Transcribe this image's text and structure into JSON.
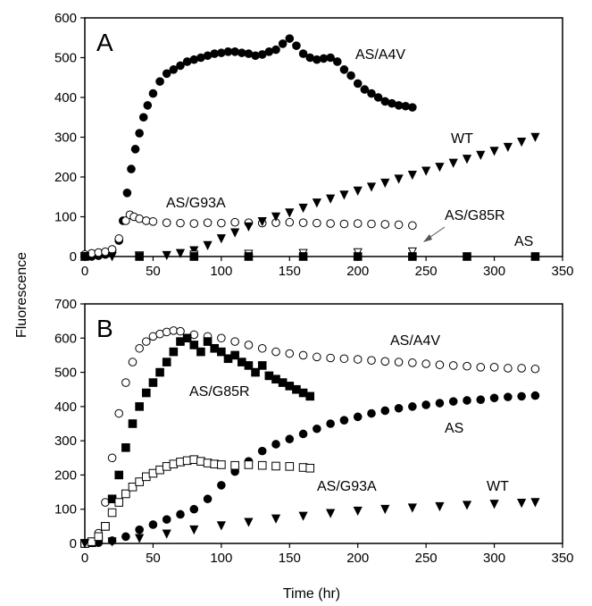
{
  "figure": {
    "ylabel": "Fluorescence",
    "xlabel": "Time (hr)"
  },
  "chart_data": [
    {
      "panel": "A",
      "type": "scatter",
      "xlim": [
        0,
        350
      ],
      "ylim": [
        0,
        600
      ],
      "xticks": [
        0,
        50,
        100,
        150,
        200,
        250,
        300,
        350
      ],
      "yticks": [
        0,
        100,
        200,
        300,
        400,
        500,
        600
      ],
      "grid": false,
      "series": [
        {
          "name": "AS/A4V",
          "marker": "filled-circle",
          "x": [
            0,
            5,
            10,
            15,
            20,
            25,
            28,
            31,
            34,
            37,
            40,
            43,
            46,
            50,
            55,
            60,
            65,
            70,
            75,
            80,
            85,
            90,
            95,
            100,
            105,
            110,
            115,
            120,
            125,
            130,
            135,
            140,
            145,
            150,
            155,
            160,
            165,
            170,
            175,
            180,
            185,
            190,
            195,
            200,
            205,
            210,
            215,
            220,
            225,
            230,
            235,
            240
          ],
          "y": [
            0,
            0,
            2,
            5,
            15,
            40,
            90,
            160,
            220,
            270,
            310,
            350,
            380,
            410,
            440,
            460,
            470,
            480,
            490,
            495,
            500,
            505,
            510,
            512,
            515,
            515,
            512,
            510,
            505,
            508,
            515,
            520,
            535,
            548,
            530,
            510,
            500,
            495,
            498,
            500,
            490,
            470,
            455,
            435,
            420,
            410,
            400,
            390,
            385,
            380,
            378,
            375
          ]
        },
        {
          "name": "AS/G93A",
          "marker": "open-circle",
          "x": [
            0,
            5,
            10,
            15,
            20,
            25,
            30,
            33,
            36,
            40,
            45,
            50,
            60,
            70,
            80,
            90,
            100,
            110,
            120,
            130,
            140,
            150,
            160,
            170,
            180,
            190,
            200,
            210,
            220,
            230,
            240
          ],
          "y": [
            5,
            8,
            10,
            12,
            18,
            45,
            90,
            105,
            100,
            95,
            90,
            88,
            85,
            84,
            83,
            85,
            84,
            86,
            85,
            84,
            85,
            86,
            85,
            84,
            83,
            82,
            83,
            82,
            81,
            80,
            78
          ]
        },
        {
          "name": "WT",
          "marker": "filled-triangle-down",
          "x": [
            0,
            20,
            40,
            60,
            70,
            80,
            90,
            100,
            110,
            120,
            130,
            140,
            150,
            160,
            170,
            180,
            190,
            200,
            210,
            220,
            230,
            240,
            250,
            260,
            270,
            280,
            290,
            300,
            310,
            320,
            330
          ],
          "y": [
            0,
            0,
            1,
            3,
            8,
            15,
            28,
            45,
            60,
            75,
            88,
            100,
            110,
            122,
            135,
            145,
            155,
            165,
            175,
            185,
            195,
            205,
            215,
            225,
            235,
            245,
            255,
            265,
            275,
            288,
            300
          ]
        },
        {
          "name": "AS/G85R",
          "marker": "open-triangle-down",
          "x": [
            0,
            40,
            80,
            120,
            160,
            200,
            240
          ],
          "y": [
            0,
            2,
            4,
            6,
            8,
            10,
            12
          ]
        },
        {
          "name": "AS",
          "marker": "filled-square",
          "x": [
            0,
            40,
            80,
            120,
            160,
            200,
            240,
            280,
            330
          ],
          "y": [
            0,
            0,
            0,
            0,
            0,
            0,
            0,
            0,
            0
          ]
        }
      ]
    },
    {
      "panel": "B",
      "type": "scatter",
      "xlim": [
        0,
        350
      ],
      "ylim": [
        0,
        700
      ],
      "xticks": [
        0,
        50,
        100,
        150,
        200,
        250,
        300,
        350
      ],
      "yticks": [
        0,
        100,
        200,
        300,
        400,
        500,
        600,
        700
      ],
      "grid": false,
      "series": [
        {
          "name": "AS/A4V",
          "marker": "open-circle",
          "x": [
            0,
            5,
            10,
            15,
            20,
            25,
            30,
            35,
            40,
            45,
            50,
            55,
            60,
            65,
            70,
            80,
            90,
            100,
            110,
            120,
            130,
            140,
            150,
            160,
            170,
            180,
            190,
            200,
            210,
            220,
            230,
            240,
            250,
            260,
            270,
            280,
            290,
            300,
            310,
            320,
            330
          ],
          "y": [
            0,
            5,
            30,
            120,
            250,
            380,
            470,
            530,
            570,
            590,
            605,
            612,
            618,
            622,
            620,
            610,
            605,
            600,
            590,
            580,
            570,
            560,
            555,
            550,
            545,
            542,
            540,
            538,
            535,
            532,
            530,
            528,
            525,
            522,
            520,
            518,
            515,
            515,
            512,
            512,
            510
          ]
        },
        {
          "name": "AS/G85R",
          "marker": "filled-square",
          "x": [
            0,
            5,
            10,
            15,
            20,
            25,
            30,
            35,
            40,
            45,
            50,
            55,
            60,
            65,
            70,
            75,
            80,
            85,
            90,
            95,
            100,
            105,
            110,
            115,
            120,
            125,
            130,
            135,
            140,
            145,
            150,
            155,
            160,
            165
          ],
          "y": [
            0,
            2,
            10,
            50,
            130,
            200,
            280,
            350,
            400,
            440,
            470,
            500,
            530,
            560,
            590,
            600,
            580,
            560,
            590,
            570,
            560,
            540,
            550,
            530,
            520,
            500,
            520,
            490,
            480,
            470,
            460,
            450,
            440,
            430
          ]
        },
        {
          "name": "AS",
          "marker": "filled-circle",
          "x": [
            0,
            10,
            20,
            30,
            40,
            50,
            60,
            70,
            80,
            90,
            100,
            110,
            120,
            130,
            140,
            150,
            160,
            170,
            180,
            190,
            200,
            210,
            220,
            230,
            240,
            250,
            260,
            270,
            280,
            290,
            300,
            310,
            320,
            330
          ],
          "y": [
            0,
            2,
            8,
            20,
            40,
            55,
            70,
            85,
            100,
            130,
            170,
            210,
            240,
            270,
            290,
            305,
            320,
            335,
            350,
            360,
            370,
            380,
            388,
            395,
            400,
            405,
            410,
            415,
            418,
            420,
            425,
            428,
            430,
            432
          ]
        },
        {
          "name": "AS/G93A",
          "marker": "open-square",
          "x": [
            0,
            5,
            10,
            15,
            20,
            25,
            30,
            35,
            40,
            45,
            50,
            55,
            60,
            65,
            70,
            75,
            80,
            85,
            90,
            95,
            100,
            110,
            120,
            130,
            140,
            150,
            160,
            165
          ],
          "y": [
            0,
            5,
            20,
            50,
            90,
            120,
            145,
            165,
            180,
            195,
            205,
            215,
            225,
            232,
            238,
            242,
            245,
            240,
            235,
            232,
            230,
            228,
            230,
            228,
            226,
            225,
            222,
            220
          ]
        },
        {
          "name": "WT",
          "marker": "filled-triangle-down",
          "x": [
            0,
            20,
            40,
            60,
            80,
            100,
            120,
            140,
            160,
            180,
            200,
            220,
            240,
            260,
            280,
            300,
            320,
            330
          ],
          "y": [
            0,
            5,
            15,
            28,
            40,
            52,
            62,
            72,
            80,
            88,
            95,
            100,
            104,
            108,
            112,
            115,
            118,
            120
          ]
        }
      ]
    }
  ]
}
